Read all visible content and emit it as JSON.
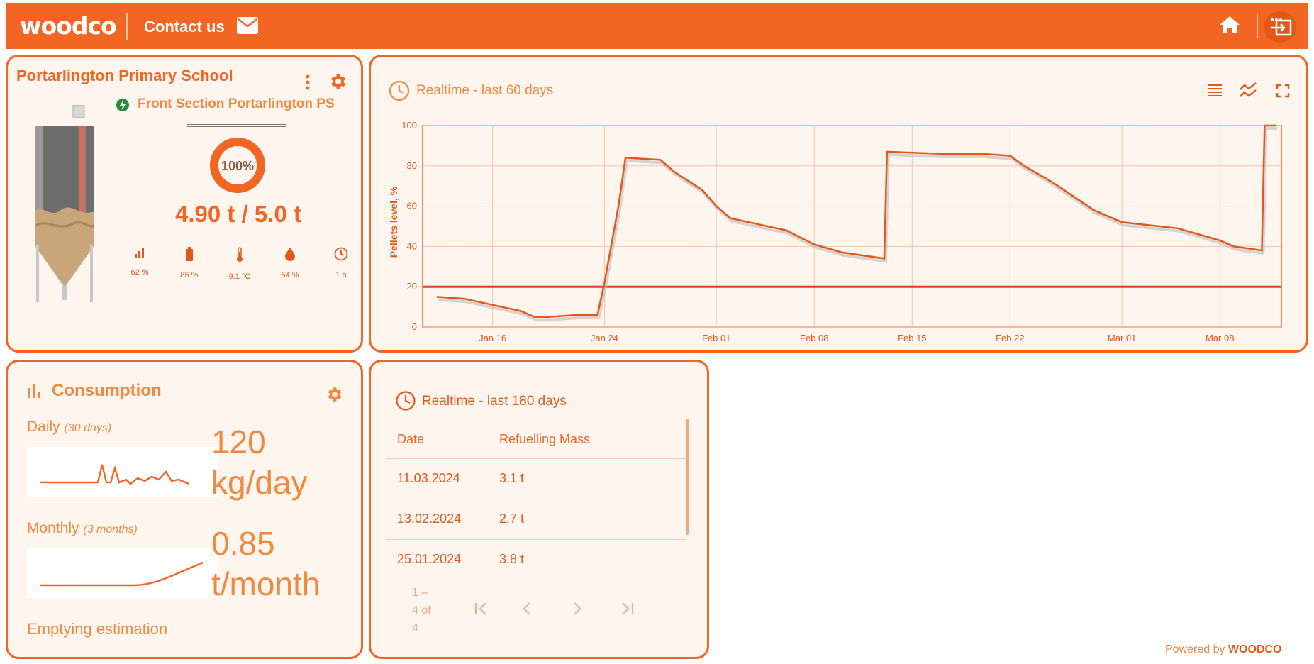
{
  "header": {
    "logo": "woodco",
    "contact_label": "Contact us",
    "icons": [
      "mail-icon",
      "home-icon",
      "logout-icon"
    ]
  },
  "site": {
    "school_name": "Portarlington Primary School",
    "section_name": "Front Section Portarlington PS",
    "fill_percent_label": "100%",
    "mass_label": "4.90 t / 5.0 t",
    "stats": [
      {
        "icon": "signal-icon",
        "value": "62 %"
      },
      {
        "icon": "battery-icon",
        "value": "85 %"
      },
      {
        "icon": "thermometer-icon",
        "value": "9.1 °C"
      },
      {
        "icon": "humidity-icon",
        "value": "54 %"
      },
      {
        "icon": "clock-icon",
        "value": "1 h"
      }
    ]
  },
  "realtime_chart": {
    "title": "Realtime - last 60 days",
    "ylabel": "Pellets level, %"
  },
  "chart_data": {
    "type": "line",
    "title": "Realtime - last 60 days",
    "xlabel": "",
    "ylabel": "Pellets level, %",
    "ylim": [
      0,
      100
    ],
    "yticks": [
      0,
      20,
      40,
      60,
      80,
      100
    ],
    "xticks": [
      "Jan 16",
      "Jan 24",
      "Feb 01",
      "Feb 08",
      "Feb 15",
      "Feb 22",
      "Mar 01",
      "Mar 08"
    ],
    "threshold": 20,
    "series": [
      {
        "x": [
          "Jan 12",
          "Jan 14",
          "Jan 16",
          "Jan 18",
          "Jan 19",
          "Jan 20",
          "Jan 22",
          "Jan 23.5",
          "Jan 24",
          "Jan 25",
          "Jan 25.5",
          "Jan 28",
          "Jan 29",
          "Jan 31",
          "Feb 01",
          "Feb 02",
          "Feb 04",
          "Feb 06",
          "Feb 08",
          "Feb 10",
          "Feb 13",
          "Feb 13.2",
          "Feb 17",
          "Feb 20",
          "Feb 22",
          "Feb 23",
          "Feb 25",
          "Feb 28",
          "Mar 01",
          "Mar 05",
          "Mar 08",
          "Mar 09",
          "Mar 11",
          "Mar 11.2",
          "Mar 12"
        ],
        "y": [
          15,
          14,
          11,
          8,
          5,
          5,
          6,
          6,
          22,
          60,
          84,
          83,
          77,
          68,
          60,
          54,
          51,
          48,
          41,
          37,
          34,
          87,
          86,
          86,
          85,
          80,
          72,
          58,
          52,
          49,
          43,
          40,
          38,
          100,
          100
        ]
      }
    ]
  },
  "consumption": {
    "title": "Consumption",
    "daily_label": "Daily",
    "daily_period": "(30 days)",
    "daily_value": "120",
    "daily_unit": "kg/day",
    "monthly_label": "Monthly",
    "monthly_period": "(3 months)",
    "monthly_value": "0.85",
    "monthly_unit": "t/month",
    "emptying_label": "Emptying estimation"
  },
  "refuelling": {
    "title": "Realtime - last 180 days",
    "columns": [
      "Date",
      "Refuelling Mass"
    ],
    "rows": [
      {
        "date": "11.03.2024",
        "mass": "3.1 t"
      },
      {
        "date": "13.02.2024",
        "mass": "2.7 t"
      },
      {
        "date": "25.01.2024",
        "mass": "3.8 t"
      }
    ],
    "pagination_line1": "1 –",
    "pagination_line2": "4 of",
    "pagination_line3": "4"
  },
  "footer": {
    "powered_by": "Powered by",
    "brand": "WOODCO"
  },
  "colors": {
    "accent": "#F26522",
    "card_bg": "#FEF5EF",
    "threshold": "#E53B2C"
  }
}
